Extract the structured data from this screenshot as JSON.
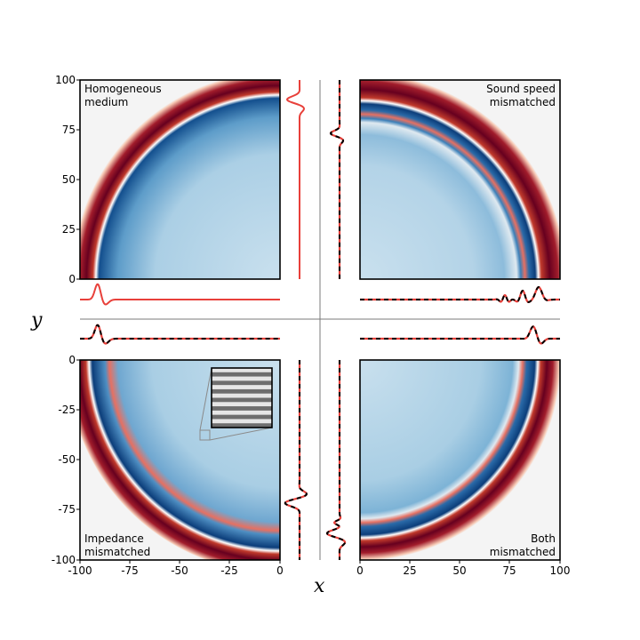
{
  "chart_data": {
    "type": "heatmap",
    "title": "",
    "xlabel": "x",
    "ylabel": "y",
    "colors": {
      "background": "#f4f4f4",
      "wave_dark": "#67001f",
      "wave_red": "#c0392b",
      "field_light": "#c7dfee",
      "field_dark": "#0b3d7a",
      "trace_red": "#e8403a",
      "trace_black": "#000000",
      "center_lines": "#7a7a7a"
    },
    "panels": [
      {
        "id": "homogeneous",
        "label_lines": [
          "Homogeneous",
          "medium"
        ],
        "xlim": [
          -100,
          0
        ],
        "ylim": [
          0,
          100
        ],
        "front_radius": 91,
        "trace_style": "solid"
      },
      {
        "id": "sound-speed",
        "label_lines": [
          "Sound speed",
          "mismatched"
        ],
        "xlim": [
          0,
          100
        ],
        "ylim": [
          0,
          100
        ],
        "front_radius": 78,
        "trace_style": "dashed"
      },
      {
        "id": "impedance",
        "label_lines": [
          "Impedance",
          "mismatched"
        ],
        "xlim": [
          -100,
          0
        ],
        "ylim": [
          -100,
          0
        ],
        "front_radius": 95,
        "trace_style": "dashed"
      },
      {
        "id": "both",
        "label_lines": [
          "Both",
          "mismatched"
        ],
        "xlim": [
          0,
          100
        ],
        "ylim": [
          -100,
          0
        ],
        "front_radius": 91,
        "trace_style": "dashed"
      }
    ],
    "ticks": {
      "y_top": [
        "100",
        "75",
        "50",
        "25",
        "0"
      ],
      "y_bottom": [
        "0",
        "-25",
        "-50",
        "-75",
        "-100"
      ],
      "x_left": [
        "-100",
        "-75",
        "-50",
        "-25",
        "0"
      ],
      "x_right": [
        "0",
        "25",
        "50",
        "75",
        "100"
      ]
    },
    "inset": {
      "description_stripes": 7,
      "source_region_x": [
        -40,
        -35
      ],
      "source_region_y": [
        -40,
        -35
      ]
    }
  }
}
